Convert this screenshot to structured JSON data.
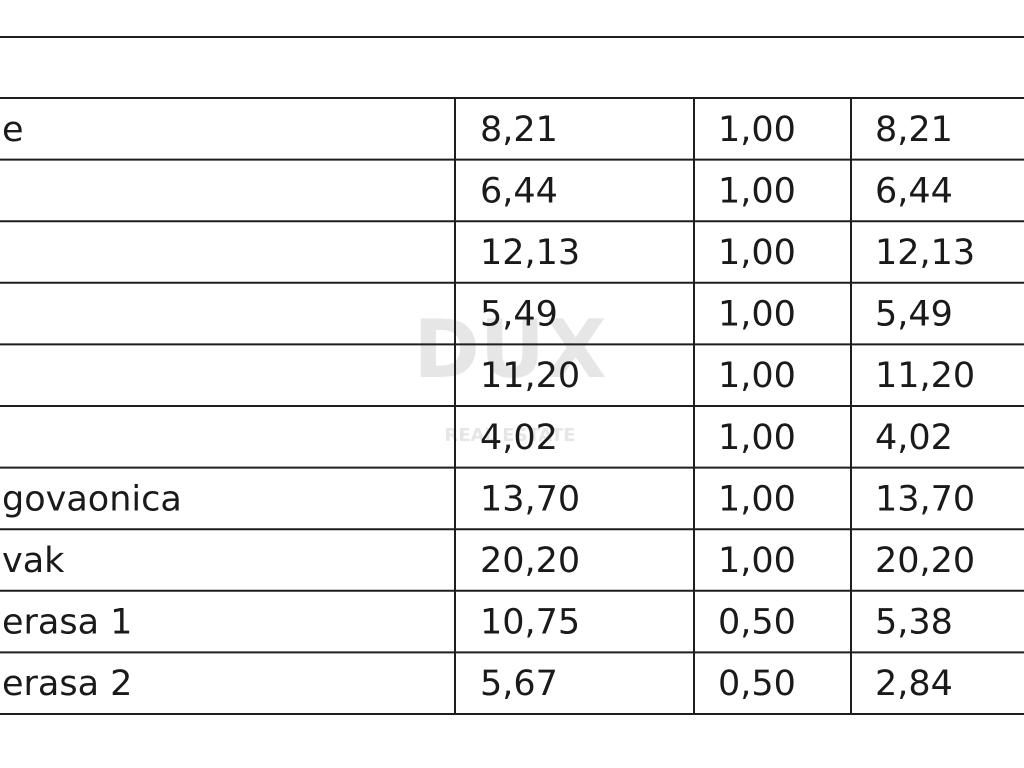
{
  "watermark": {
    "logo": "DUX",
    "tagline": "REAL ESTATE"
  },
  "table": {
    "rows": [
      [
        "e",
        "8,21",
        "1,00",
        "8,21"
      ],
      [
        null,
        "6,44",
        "1,00",
        "6,44"
      ],
      [
        null,
        "12,13",
        "1,00",
        "12,13"
      ],
      [
        null,
        "5,49",
        "1,00",
        "5,49"
      ],
      [
        null,
        "11,20",
        "1,00",
        "11,20"
      ],
      [
        null,
        "4,02",
        "1,00",
        "4,02"
      ],
      [
        "govaonica",
        "13,70",
        "1,00",
        "13,70"
      ],
      [
        "vak",
        "20,20",
        "1,00",
        "20,20"
      ],
      [
        "erasa 1",
        "10,75",
        "0,50",
        "5,38"
      ],
      [
        "erasa 2",
        "5,67",
        "0,50",
        "2,84"
      ]
    ]
  }
}
